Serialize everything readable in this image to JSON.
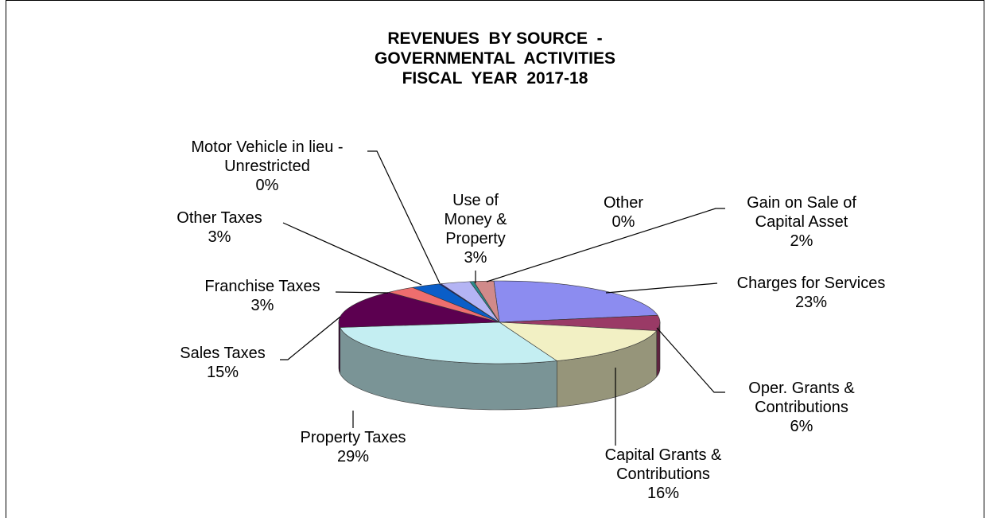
{
  "chart_data": {
    "type": "pie",
    "title_lines": [
      "REVENUES  BY SOURCE  -",
      "GOVERNMENTAL  ACTIVITIES",
      "FISCAL  YEAR  2017-18"
    ],
    "slices": [
      {
        "name": "Charges for Services",
        "label_lines": [
          "Charges for Services"
        ],
        "pct_label": "23%",
        "value": 23,
        "color": "#8c8cf0"
      },
      {
        "name": "Oper. Grants & Contributions",
        "label_lines": [
          "Oper. Grants &",
          "Contributions"
        ],
        "pct_label": "6%",
        "value": 6,
        "color": "#9a3a66"
      },
      {
        "name": "Capital Grants & Contributions",
        "label_lines": [
          "Capital Grants &",
          "Contributions"
        ],
        "pct_label": "16%",
        "value": 16,
        "color": "#f2f0c4"
      },
      {
        "name": "Property Taxes",
        "label_lines": [
          "Property Taxes"
        ],
        "pct_label": "29%",
        "value": 29,
        "color": "#c4eef2"
      },
      {
        "name": "Sales Taxes",
        "label_lines": [
          "Sales Taxes"
        ],
        "pct_label": "15%",
        "value": 15,
        "color": "#5c0050"
      },
      {
        "name": "Franchise Taxes",
        "label_lines": [
          "Franchise Taxes"
        ],
        "pct_label": "3%",
        "value": 3,
        "color": "#ee6e6e"
      },
      {
        "name": "Other Taxes",
        "label_lines": [
          "Other Taxes"
        ],
        "pct_label": "3%",
        "value": 3,
        "color": "#0a5ec8"
      },
      {
        "name": "Motor Vehicle in lieu - Unrestricted",
        "label_lines": [
          "Motor Vehicle in lieu -",
          "Unrestricted"
        ],
        "pct_label": "0%",
        "value": 0.2,
        "color": "#1a1a8a"
      },
      {
        "name": "Use of Money & Property",
        "label_lines": [
          "Use of",
          "Money &",
          "Property"
        ],
        "pct_label": "3%",
        "value": 3,
        "color": "#b4b4f4"
      },
      {
        "name": "Other",
        "label_lines": [
          "Other"
        ],
        "pct_label": "0%",
        "value": 0.4,
        "color": "#2a8a8a"
      },
      {
        "name": "Gain on Sale of Capital Asset",
        "label_lines": [
          "Gain on Sale of",
          "Capital Asset"
        ],
        "pct_label": "2%",
        "value": 2,
        "color": "#d08a8a"
      }
    ],
    "legend": "none"
  }
}
